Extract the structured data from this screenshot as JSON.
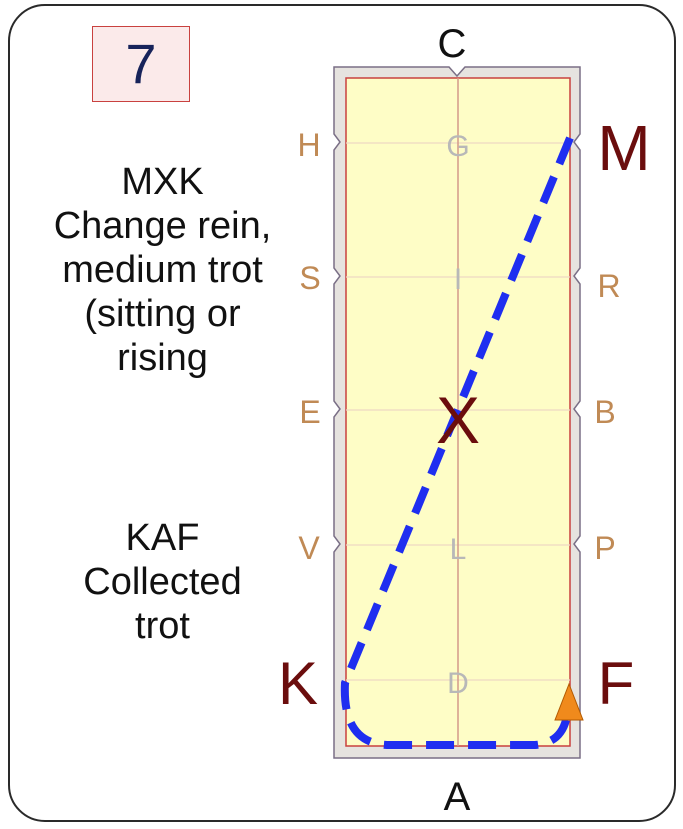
{
  "step_number": "7",
  "instructions": [
    {
      "movement": "MXK",
      "lines": [
        "Change rein,",
        "medium trot",
        "(sitting or",
        "rising"
      ]
    },
    {
      "movement": "KAF",
      "lines": [
        "Collected",
        "trot"
      ]
    }
  ],
  "arena": {
    "end_letters": {
      "top": "C",
      "bottom": "A"
    },
    "left_letters": [
      "H",
      "S",
      "E",
      "V",
      "K"
    ],
    "right_letters": [
      "M",
      "R",
      "B",
      "P",
      "F"
    ],
    "centerline_letters": [
      "G",
      "I",
      "X",
      "L",
      "D"
    ],
    "featured_letters": [
      "M",
      "X",
      "K",
      "F"
    ],
    "route": [
      "M",
      "X",
      "K",
      "A",
      "F"
    ],
    "colors": {
      "arena_fill": "#fefdc6",
      "arena_border": "#c9413f",
      "arena_surround": "#e6e3df",
      "route": "#1f2ef0",
      "marker_letters": "#c08a55",
      "featured_letters": "#6b0d0d",
      "centerline_letters": "#b8b8b8",
      "direction_triangle": "#f08a1c"
    },
    "direction_marker": "orange-triangle"
  }
}
